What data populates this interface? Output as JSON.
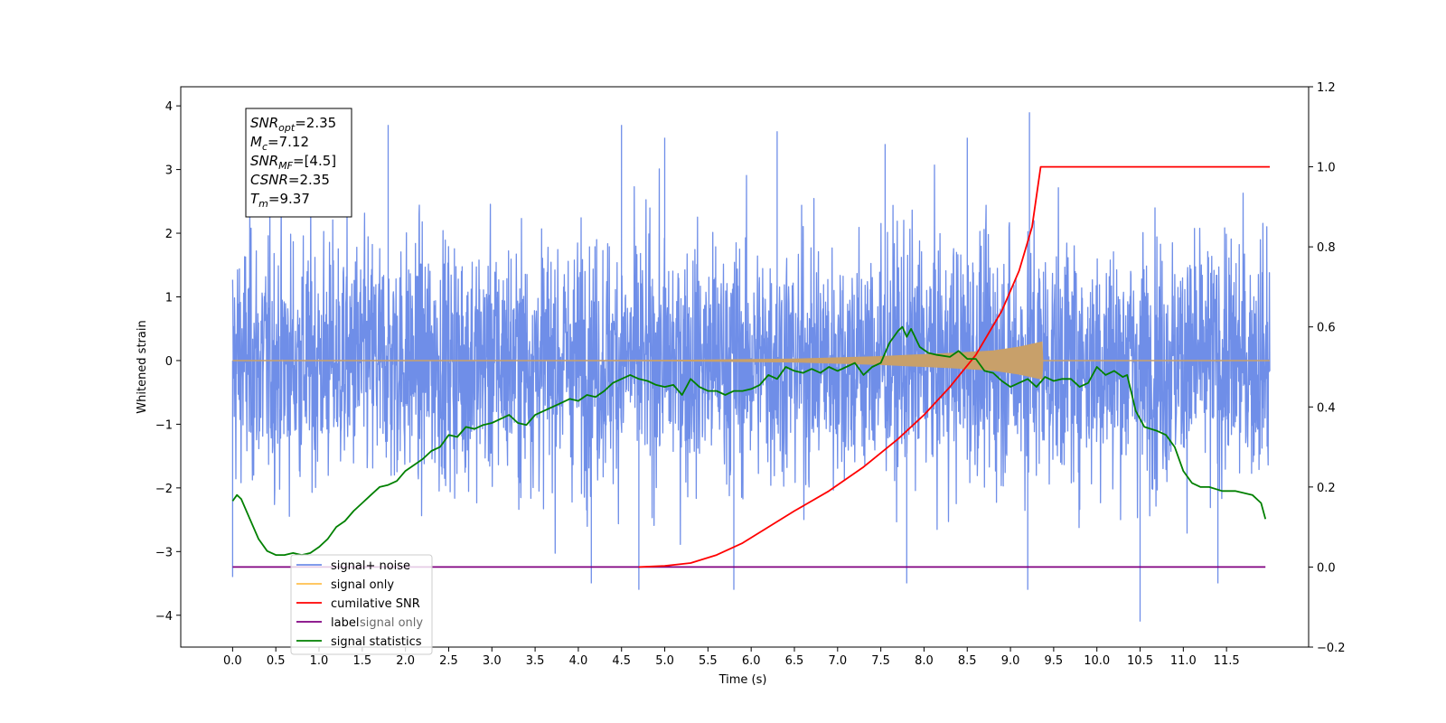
{
  "chart_data": {
    "type": "line",
    "xlabel": "Time (s)",
    "ylabel": "Whitened strain",
    "xlim": [
      -0.6,
      12.45
    ],
    "ylim": [
      -4.5,
      4.3
    ],
    "ylim_right": [
      -0.2,
      1.2
    ],
    "x_ticks": [
      "0.0",
      "0.5",
      "1.0",
      "1.5",
      "2.0",
      "2.5",
      "3.0",
      "3.5",
      "4.0",
      "4.5",
      "5.0",
      "5.5",
      "6.0",
      "6.5",
      "7.0",
      "7.5",
      "8.0",
      "8.5",
      "9.0",
      "9.5",
      "10.0",
      "10.5",
      "11.0",
      "11.5"
    ],
    "y_ticks_left": [
      "−4",
      "−3",
      "−2",
      "−1",
      "0",
      "1",
      "2",
      "3",
      "4"
    ],
    "y_ticks_right": [
      "−0.2",
      "0.0",
      "0.2",
      "0.4",
      "0.6",
      "0.8",
      "1.0",
      "1.2"
    ],
    "legend_position": "lower-left",
    "legend": [
      {
        "label": "signal+ noise",
        "color": "#6f8ee8"
      },
      {
        "label": "signal only",
        "color": "#ffc04d"
      },
      {
        "label": "cumilative SNR",
        "color": "#ff0000"
      },
      {
        "label": "label",
        "color": "#800080"
      },
      {
        "label": "signal statistics",
        "color": "#008000"
      }
    ],
    "hidden_legend_text": "signal only",
    "annotation": {
      "lines": [
        {
          "name": "SNR",
          "sub": "opt",
          "value": "=2.35"
        },
        {
          "name": "M",
          "sub": "c",
          "value": "=7.12"
        },
        {
          "name": "SNR",
          "sub": "MF",
          "value": "=[4.5]"
        },
        {
          "name": "CSNR",
          "sub": "",
          "value": "=2.35"
        },
        {
          "name": "T",
          "sub": "m",
          "value": "=9.37"
        }
      ]
    },
    "series": [
      {
        "name": "signal+ noise",
        "axis": "left",
        "color": "#6f8ee8",
        "x_range": [
          0.0,
          12.0
        ],
        "amplitude_typical": 1.0,
        "notable_peaks": [
          {
            "x": 1.8,
            "y": 3.7
          },
          {
            "x": 4.5,
            "y": 3.7
          },
          {
            "x": 5.0,
            "y": 3.5
          },
          {
            "x": 6.3,
            "y": 3.6
          },
          {
            "x": 7.55,
            "y": 3.4
          },
          {
            "x": 8.5,
            "y": 3.5
          },
          {
            "x": 9.22,
            "y": 3.9
          },
          {
            "x": 10.5,
            "y": -4.1
          },
          {
            "x": 4.15,
            "y": -3.5
          },
          {
            "x": 4.7,
            "y": -3.6
          },
          {
            "x": 9.2,
            "y": -3.6
          },
          {
            "x": 11.4,
            "y": -3.5
          },
          {
            "x": 0.0,
            "y": -3.4
          },
          {
            "x": 5.8,
            "y": -3.6
          },
          {
            "x": 7.8,
            "y": -3.5
          }
        ]
      },
      {
        "name": "signal only",
        "axis": "left",
        "color": "#c8a06a",
        "points": [
          [
            0.0,
            0.0
          ],
          [
            5.0,
            0.01
          ],
          [
            6.5,
            0.03
          ],
          [
            7.5,
            0.07
          ],
          [
            8.3,
            0.12
          ],
          [
            8.8,
            0.16
          ],
          [
            9.1,
            0.22
          ],
          [
            9.37,
            0.3
          ],
          [
            9.38,
            0.0
          ],
          [
            12.0,
            0.0
          ]
        ]
      },
      {
        "name": "cumilative SNR",
        "axis": "right",
        "color": "#ff0000",
        "points": [
          [
            4.7,
            0.0
          ],
          [
            5.0,
            0.003
          ],
          [
            5.3,
            0.01
          ],
          [
            5.6,
            0.03
          ],
          [
            5.9,
            0.06
          ],
          [
            6.2,
            0.1
          ],
          [
            6.5,
            0.14
          ],
          [
            6.9,
            0.19
          ],
          [
            7.3,
            0.25
          ],
          [
            7.7,
            0.32
          ],
          [
            8.0,
            0.38
          ],
          [
            8.3,
            0.45
          ],
          [
            8.6,
            0.53
          ],
          [
            8.9,
            0.64
          ],
          [
            9.1,
            0.74
          ],
          [
            9.25,
            0.85
          ],
          [
            9.35,
            1.0
          ],
          [
            12.0,
            1.0
          ]
        ]
      },
      {
        "name": "label",
        "axis": "right",
        "color": "#800080",
        "points": [
          [
            0.0,
            0.0
          ],
          [
            11.95,
            0.0
          ]
        ]
      },
      {
        "name": "signal statistics",
        "axis": "right",
        "color": "#008000",
        "points": [
          [
            0.0,
            0.165
          ],
          [
            0.05,
            0.18
          ],
          [
            0.1,
            0.17
          ],
          [
            0.2,
            0.12
          ],
          [
            0.3,
            0.07
          ],
          [
            0.4,
            0.04
          ],
          [
            0.5,
            0.03
          ],
          [
            0.6,
            0.03
          ],
          [
            0.7,
            0.035
          ],
          [
            0.8,
            0.03
          ],
          [
            0.9,
            0.035
          ],
          [
            1.0,
            0.05
          ],
          [
            1.1,
            0.07
          ],
          [
            1.2,
            0.1
          ],
          [
            1.3,
            0.115
          ],
          [
            1.4,
            0.14
          ],
          [
            1.5,
            0.16
          ],
          [
            1.6,
            0.18
          ],
          [
            1.7,
            0.2
          ],
          [
            1.8,
            0.205
          ],
          [
            1.9,
            0.215
          ],
          [
            2.0,
            0.24
          ],
          [
            2.1,
            0.255
          ],
          [
            2.2,
            0.27
          ],
          [
            2.3,
            0.29
          ],
          [
            2.4,
            0.3
          ],
          [
            2.5,
            0.33
          ],
          [
            2.6,
            0.325
          ],
          [
            2.7,
            0.35
          ],
          [
            2.8,
            0.345
          ],
          [
            2.9,
            0.355
          ],
          [
            3.0,
            0.36
          ],
          [
            3.1,
            0.37
          ],
          [
            3.2,
            0.38
          ],
          [
            3.3,
            0.36
          ],
          [
            3.4,
            0.355
          ],
          [
            3.5,
            0.38
          ],
          [
            3.6,
            0.39
          ],
          [
            3.7,
            0.4
          ],
          [
            3.8,
            0.41
          ],
          [
            3.9,
            0.42
          ],
          [
            4.0,
            0.415
          ],
          [
            4.1,
            0.43
          ],
          [
            4.2,
            0.425
          ],
          [
            4.3,
            0.44
          ],
          [
            4.4,
            0.46
          ],
          [
            4.5,
            0.47
          ],
          [
            4.6,
            0.48
          ],
          [
            4.7,
            0.47
          ],
          [
            4.8,
            0.465
          ],
          [
            4.9,
            0.455
          ],
          [
            5.0,
            0.45
          ],
          [
            5.1,
            0.455
          ],
          [
            5.2,
            0.43
          ],
          [
            5.3,
            0.47
          ],
          [
            5.4,
            0.45
          ],
          [
            5.5,
            0.44
          ],
          [
            5.6,
            0.44
          ],
          [
            5.7,
            0.43
          ],
          [
            5.8,
            0.44
          ],
          [
            5.9,
            0.44
          ],
          [
            6.0,
            0.445
          ],
          [
            6.1,
            0.455
          ],
          [
            6.2,
            0.48
          ],
          [
            6.3,
            0.47
          ],
          [
            6.4,
            0.5
          ],
          [
            6.5,
            0.49
          ],
          [
            6.6,
            0.485
          ],
          [
            6.7,
            0.495
          ],
          [
            6.8,
            0.485
          ],
          [
            6.9,
            0.5
          ],
          [
            7.0,
            0.49
          ],
          [
            7.1,
            0.5
          ],
          [
            7.2,
            0.51
          ],
          [
            7.3,
            0.48
          ],
          [
            7.4,
            0.5
          ],
          [
            7.5,
            0.51
          ],
          [
            7.6,
            0.56
          ],
          [
            7.7,
            0.59
          ],
          [
            7.75,
            0.6
          ],
          [
            7.8,
            0.575
          ],
          [
            7.85,
            0.595
          ],
          [
            7.95,
            0.55
          ],
          [
            8.05,
            0.535
          ],
          [
            8.15,
            0.53
          ],
          [
            8.3,
            0.525
          ],
          [
            8.4,
            0.54
          ],
          [
            8.5,
            0.52
          ],
          [
            8.6,
            0.52
          ],
          [
            8.7,
            0.49
          ],
          [
            8.8,
            0.485
          ],
          [
            8.9,
            0.465
          ],
          [
            9.0,
            0.45
          ],
          [
            9.1,
            0.46
          ],
          [
            9.2,
            0.47
          ],
          [
            9.3,
            0.45
          ],
          [
            9.4,
            0.475
          ],
          [
            9.5,
            0.465
          ],
          [
            9.6,
            0.47
          ],
          [
            9.7,
            0.47
          ],
          [
            9.8,
            0.45
          ],
          [
            9.9,
            0.46
          ],
          [
            10.0,
            0.5
          ],
          [
            10.1,
            0.48
          ],
          [
            10.2,
            0.49
          ],
          [
            10.3,
            0.475
          ],
          [
            10.35,
            0.48
          ],
          [
            10.45,
            0.39
          ],
          [
            10.55,
            0.35
          ],
          [
            10.7,
            0.34
          ],
          [
            10.8,
            0.33
          ],
          [
            10.9,
            0.3
          ],
          [
            11.0,
            0.24
          ],
          [
            11.1,
            0.21
          ],
          [
            11.2,
            0.2
          ],
          [
            11.3,
            0.2
          ],
          [
            11.45,
            0.19
          ],
          [
            11.6,
            0.19
          ],
          [
            11.7,
            0.185
          ],
          [
            11.8,
            0.18
          ],
          [
            11.9,
            0.16
          ],
          [
            11.95,
            0.12
          ]
        ]
      }
    ]
  }
}
